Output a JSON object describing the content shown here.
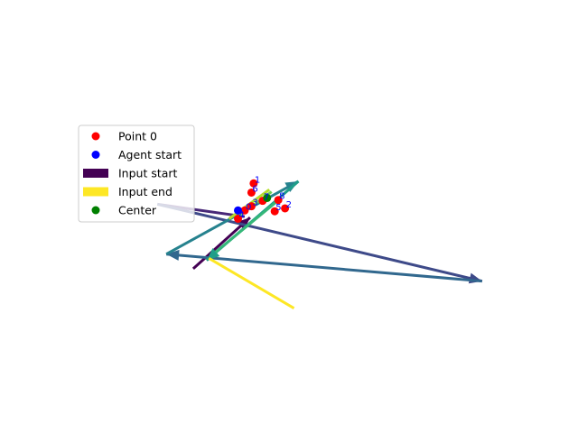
{
  "chart_data": {
    "type": "scatter",
    "title": "",
    "xlabel": "",
    "ylabel": "",
    "axes_visible": false,
    "grid": false,
    "xlim": [
      -4.0,
      6.0
    ],
    "ylim": [
      -4.0,
      4.0
    ],
    "legend": {
      "placement": "center-left",
      "entries": [
        {
          "label": "Point 0",
          "kind": "marker",
          "color": "#ff0000"
        },
        {
          "label": "Agent start",
          "kind": "marker",
          "color": "#0000ff"
        },
        {
          "label": "Input start",
          "kind": "patch",
          "color": "#440154"
        },
        {
          "label": "Input end",
          "kind": "patch",
          "color": "#fde725"
        },
        {
          "label": "Center",
          "kind": "marker",
          "color": "#008000"
        }
      ]
    },
    "points": [
      {
        "label": "0",
        "x": -0.15,
        "y": 0.2
      },
      {
        "label": "1",
        "x": 0.05,
        "y": 0.85
      },
      {
        "label": "2",
        "x": 0.75,
        "y": 0.25
      },
      {
        "label": "3",
        "x": 0.0,
        "y": 0.3
      },
      {
        "label": "4",
        "x": -0.3,
        "y": 0.0
      },
      {
        "label": "5",
        "x": 0.52,
        "y": 0.18
      },
      {
        "label": "6",
        "x": 0.0,
        "y": 0.63
      },
      {
        "label": "7",
        "x": 0.25,
        "y": 0.43
      },
      {
        "label": "8",
        "x": 0.6,
        "y": 0.45
      }
    ],
    "agent_start": {
      "x": -0.3,
      "y": 0.2
    },
    "center": {
      "x": 0.35,
      "y": 0.5
    },
    "arrows": [
      {
        "x0": -1.3,
        "y0": -1.2,
        "x1": -0.03,
        "y1": 0.03,
        "color": "#440154",
        "head": true
      },
      {
        "x0": -0.15,
        "y0": 0.05,
        "x1": -2.1,
        "y1": 0.35,
        "color": "#482878",
        "head": false
      },
      {
        "x0": -2.1,
        "y0": 0.35,
        "x1": 5.15,
        "y1": -1.5,
        "color": "#3e4a89",
        "head": true
      },
      {
        "x0": 5.15,
        "y0": -1.5,
        "x1": -1.9,
        "y1": -0.85,
        "color": "#31688e",
        "head": true
      },
      {
        "x0": -1.9,
        "y0": -0.85,
        "x1": 1.05,
        "y1": 0.9,
        "color": "#26828e",
        "head": true
      },
      {
        "x0": 1.05,
        "y0": 0.9,
        "x1": -1.0,
        "y1": -1.0,
        "color": "#1f9e89",
        "head": true
      },
      {
        "x0": -0.8,
        "y0": -0.8,
        "x1": 0.55,
        "y1": 0.4,
        "color": "#35b779",
        "head": false
      },
      {
        "x0": -0.3,
        "y0": 0.05,
        "x1": 0.45,
        "y1": 0.65,
        "color": "#6ece58",
        "head": false
      },
      {
        "x0": 0.4,
        "y0": 0.7,
        "x1": -0.5,
        "y1": 0.0,
        "color": "#b5de2b",
        "head": false
      },
      {
        "x0": -0.95,
        "y0": -0.95,
        "x1": 0.95,
        "y1": -2.15,
        "color": "#fde725",
        "head": false
      }
    ]
  }
}
